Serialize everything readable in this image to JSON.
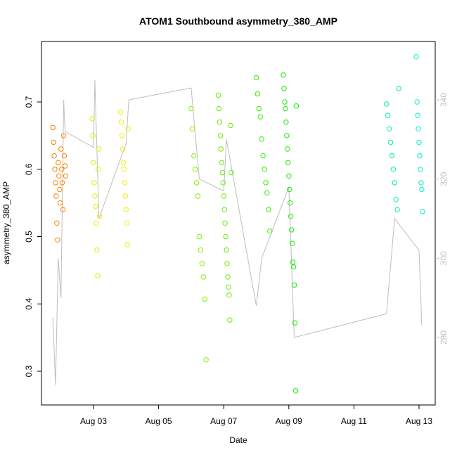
{
  "chart_data": {
    "type": "scatter",
    "title": "ATOM1 Southbound asymmetry_380_AMP",
    "xlabel": "Date",
    "ylabel": "asymmetry_380_AMP",
    "x_ticks": [
      "Aug 03",
      "Aug 05",
      "Aug 07",
      "Aug 09",
      "Aug 11",
      "Aug 13"
    ],
    "y_ticks": [
      0.3,
      0.4,
      0.5,
      0.6,
      0.7
    ],
    "y_ticks_right": [
      280,
      300,
      320,
      340
    ],
    "grid": false,
    "legend": "none",
    "colors": {
      "axis": "#000000",
      "secondary_axis": "#bebebe",
      "secondary_line": "#bebebe"
    },
    "series": [
      {
        "color": "#ff8000",
        "points": [
          [
            "2023-08-01 18:00",
            0.662
          ],
          [
            "2023-08-01 18:30",
            0.64
          ],
          [
            "2023-08-01 19:00",
            0.62
          ],
          [
            "2023-08-01 19:30",
            0.6
          ],
          [
            "2023-08-01 20:00",
            0.58
          ],
          [
            "2023-08-01 20:30",
            0.56
          ],
          [
            "2023-08-01 21:00",
            0.52
          ],
          [
            "2023-08-01 21:30",
            0.495
          ],
          [
            "2023-08-01 22:00",
            0.61
          ],
          [
            "2023-08-01 22:30",
            0.59
          ],
          [
            "2023-08-01 23:00",
            0.57
          ],
          [
            "2023-08-01 23:30",
            0.55
          ],
          [
            "2023-08-02 00:00",
            0.63
          ],
          [
            "2023-08-02 00:30",
            0.6
          ],
          [
            "2023-08-02 01:00",
            0.58
          ],
          [
            "2023-08-02 01:30",
            0.54
          ],
          [
            "2023-08-02 02:00",
            0.65
          ],
          [
            "2023-08-02 02:30",
            0.62
          ],
          [
            "2023-08-02 03:00",
            0.605
          ],
          [
            "2023-08-02 03:30",
            0.59
          ]
        ]
      },
      {
        "color": "#e6ee00",
        "points": [
          [
            "2023-08-02 23:00",
            0.675
          ],
          [
            "2023-08-02 23:30",
            0.65
          ],
          [
            "2023-08-03 00:00",
            0.61
          ],
          [
            "2023-08-03 00:30",
            0.58
          ],
          [
            "2023-08-03 01:00",
            0.56
          ],
          [
            "2023-08-03 01:30",
            0.545
          ],
          [
            "2023-08-03 02:00",
            0.52
          ],
          [
            "2023-08-03 02:30",
            0.48
          ],
          [
            "2023-08-03 03:00",
            0.442
          ],
          [
            "2023-08-03 03:30",
            0.6
          ],
          [
            "2023-08-03 04:00",
            0.63
          ],
          [
            "2023-08-03 04:30",
            0.53
          ]
        ]
      },
      {
        "color": "#eeee00",
        "points": [
          [
            "2023-08-03 20:00",
            0.685
          ],
          [
            "2023-08-03 20:30",
            0.67
          ],
          [
            "2023-08-03 21:00",
            0.65
          ],
          [
            "2023-08-03 21:30",
            0.63
          ],
          [
            "2023-08-03 22:00",
            0.61
          ],
          [
            "2023-08-03 22:30",
            0.6
          ],
          [
            "2023-08-03 23:00",
            0.58
          ],
          [
            "2023-08-03 23:30",
            0.56
          ],
          [
            "2023-08-04 00:00",
            0.54
          ],
          [
            "2023-08-04 00:30",
            0.52
          ],
          [
            "2023-08-04 01:00",
            0.488
          ],
          [
            "2023-08-04 01:30",
            0.66
          ]
        ]
      },
      {
        "color": "#88ee00",
        "points": [
          [
            "2023-08-06 00:00",
            0.69
          ],
          [
            "2023-08-06 01:00",
            0.66
          ],
          [
            "2023-08-06 02:00",
            0.62
          ],
          [
            "2023-08-06 03:00",
            0.6
          ],
          [
            "2023-08-06 04:00",
            0.58
          ],
          [
            "2023-08-06 05:00",
            0.56
          ],
          [
            "2023-08-06 06:00",
            0.5
          ],
          [
            "2023-08-06 07:00",
            0.48
          ],
          [
            "2023-08-06 08:00",
            0.46
          ],
          [
            "2023-08-06 09:00",
            0.44
          ],
          [
            "2023-08-06 10:00",
            0.407
          ],
          [
            "2023-08-06 11:00",
            0.317
          ]
        ]
      },
      {
        "color": "#66ee00",
        "points": [
          [
            "2023-08-06 20:00",
            0.71
          ],
          [
            "2023-08-06 20:30",
            0.69
          ],
          [
            "2023-08-06 21:00",
            0.67
          ],
          [
            "2023-08-06 21:30",
            0.65
          ],
          [
            "2023-08-06 22:00",
            0.63
          ],
          [
            "2023-08-06 22:30",
            0.61
          ],
          [
            "2023-08-06 23:00",
            0.595
          ],
          [
            "2023-08-06 23:30",
            0.58
          ],
          [
            "2023-08-07 00:00",
            0.56
          ],
          [
            "2023-08-07 00:30",
            0.54
          ],
          [
            "2023-08-07 01:00",
            0.52
          ],
          [
            "2023-08-07 01:30",
            0.5
          ],
          [
            "2023-08-07 02:00",
            0.48
          ],
          [
            "2023-08-07 02:30",
            0.46
          ],
          [
            "2023-08-07 03:00",
            0.44
          ],
          [
            "2023-08-07 03:30",
            0.425
          ],
          [
            "2023-08-07 04:00",
            0.413
          ],
          [
            "2023-08-07 04:30",
            0.376
          ],
          [
            "2023-08-07 05:00",
            0.665
          ],
          [
            "2023-08-07 05:30",
            0.595
          ]
        ]
      },
      {
        "color": "#33ee00",
        "points": [
          [
            "2023-08-08 00:00",
            0.736
          ],
          [
            "2023-08-08 01:00",
            0.712
          ],
          [
            "2023-08-08 02:00",
            0.69
          ],
          [
            "2023-08-08 03:00",
            0.678
          ],
          [
            "2023-08-08 04:00",
            0.645
          ],
          [
            "2023-08-08 05:00",
            0.62
          ],
          [
            "2023-08-08 06:00",
            0.6
          ],
          [
            "2023-08-08 07:00",
            0.58
          ],
          [
            "2023-08-08 08:00",
            0.565
          ],
          [
            "2023-08-08 09:00",
            0.54
          ],
          [
            "2023-08-08 10:00",
            0.508
          ]
        ]
      },
      {
        "color": "#11ee00",
        "points": [
          [
            "2023-08-08 20:00",
            0.74
          ],
          [
            "2023-08-08 20:30",
            0.72
          ],
          [
            "2023-08-08 21:00",
            0.7
          ],
          [
            "2023-08-08 21:30",
            0.69
          ],
          [
            "2023-08-08 22:00",
            0.67
          ],
          [
            "2023-08-08 22:30",
            0.65
          ],
          [
            "2023-08-08 23:00",
            0.63
          ],
          [
            "2023-08-08 23:30",
            0.61
          ],
          [
            "2023-08-09 00:00",
            0.59
          ],
          [
            "2023-08-09 00:30",
            0.57
          ],
          [
            "2023-08-09 01:00",
            0.55
          ],
          [
            "2023-08-09 01:30",
            0.53
          ],
          [
            "2023-08-09 02:00",
            0.51
          ],
          [
            "2023-08-09 02:30",
            0.49
          ],
          [
            "2023-08-09 03:00",
            0.462
          ],
          [
            "2023-08-09 03:30",
            0.455
          ],
          [
            "2023-08-09 04:00",
            0.428
          ],
          [
            "2023-08-09 04:30",
            0.372
          ],
          [
            "2023-08-09 05:00",
            0.271
          ],
          [
            "2023-08-09 05:30",
            0.694
          ]
        ]
      },
      {
        "color": "#00eeaa",
        "points": [
          [
            "2023-08-12 00:00",
            0.697
          ],
          [
            "2023-08-12 01:00",
            0.68
          ],
          [
            "2023-08-12 02:00",
            0.66
          ],
          [
            "2023-08-12 03:00",
            0.64
          ],
          [
            "2023-08-12 04:00",
            0.62
          ],
          [
            "2023-08-12 05:00",
            0.6
          ],
          [
            "2023-08-12 06:00",
            0.58
          ],
          [
            "2023-08-12 07:00",
            0.555
          ],
          [
            "2023-08-12 08:00",
            0.54
          ],
          [
            "2023-08-12 09:00",
            0.72
          ]
        ]
      },
      {
        "color": "#00eecc",
        "points": [
          [
            "2023-08-12 22:00",
            0.767
          ],
          [
            "2023-08-12 22:30",
            0.7
          ],
          [
            "2023-08-12 23:00",
            0.68
          ],
          [
            "2023-08-12 23:30",
            0.66
          ],
          [
            "2023-08-13 00:00",
            0.64
          ],
          [
            "2023-08-13 00:30",
            0.62
          ],
          [
            "2023-08-13 01:00",
            0.6
          ],
          [
            "2023-08-13 01:30",
            0.58
          ],
          [
            "2023-08-13 02:00",
            0.57
          ],
          [
            "2023-08-13 02:30",
            0.537
          ]
        ]
      }
    ],
    "secondary_series": {
      "color": "#bebebe",
      "points": [
        [
          "2023-08-01 18:00",
          285
        ],
        [
          "2023-08-01 20:00",
          268
        ],
        [
          "2023-08-01 22:00",
          300
        ],
        [
          "2023-08-02 00:00",
          290
        ],
        [
          "2023-08-02 02:00",
          340
        ],
        [
          "2023-08-02 03:00",
          332
        ],
        [
          "2023-08-03 00:00",
          328
        ],
        [
          "2023-08-03 01:00",
          345
        ],
        [
          "2023-08-03 04:00",
          310
        ],
        [
          "2023-08-04 00:00",
          329
        ],
        [
          "2023-08-04 02:00",
          340
        ],
        [
          "2023-08-06 00:00",
          343
        ],
        [
          "2023-08-06 06:00",
          320
        ],
        [
          "2023-08-07 00:00",
          317
        ],
        [
          "2023-08-07 02:00",
          330
        ],
        [
          "2023-08-08 00:00",
          288
        ],
        [
          "2023-08-08 04:00",
          300
        ],
        [
          "2023-08-09 00:00",
          318
        ],
        [
          "2023-08-09 04:00",
          280
        ],
        [
          "2023-08-12 00:00",
          286
        ],
        [
          "2023-08-12 06:00",
          310
        ],
        [
          "2023-08-13 00:00",
          302
        ],
        [
          "2023-08-13 02:00",
          283
        ]
      ]
    }
  }
}
